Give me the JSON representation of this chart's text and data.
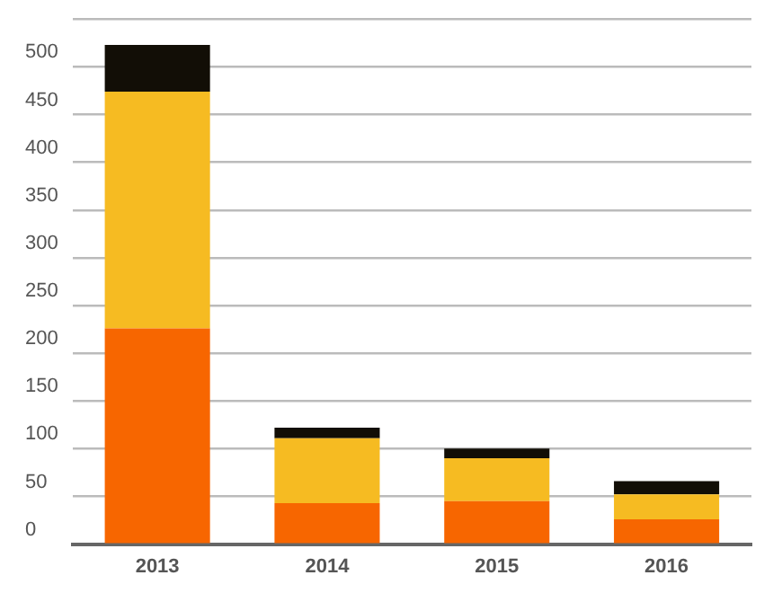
{
  "chart_data": {
    "type": "bar",
    "stacked": true,
    "categories": [
      "2013",
      "2014",
      "2015",
      "2016"
    ],
    "series": [
      {
        "color": "#f76600",
        "values": [
          226,
          43,
          45,
          26
        ]
      },
      {
        "color": "#f6bb22",
        "values": [
          248,
          68,
          45,
          26
        ]
      },
      {
        "color": "#120e06",
        "values": [
          49,
          11,
          10,
          14
        ]
      }
    ],
    "ylim": [
      0,
      550
    ],
    "yticks": [
      0,
      50,
      100,
      150,
      200,
      250,
      300,
      350,
      400,
      450,
      500,
      {
        "value": 550,
        "label": null
      }
    ],
    "grid": "y",
    "legend": false
  }
}
